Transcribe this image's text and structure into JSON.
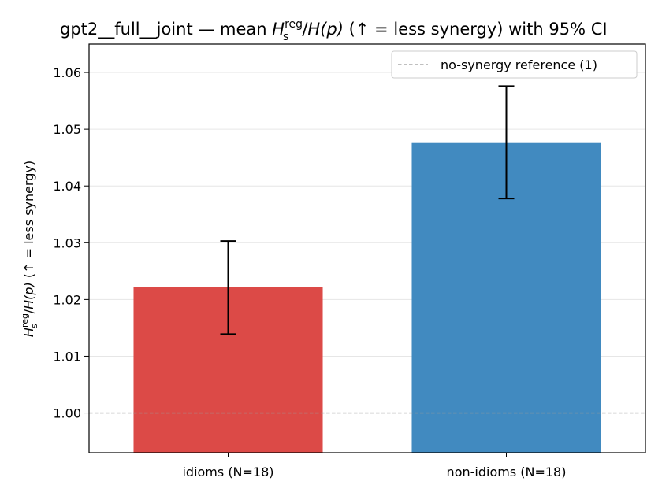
{
  "chart_data": {
    "type": "bar",
    "title": {
      "prefix": "gpt2__full__joint — mean ",
      "suffix": "  (↑ = less synergy) with 95% CI"
    },
    "ylabel": {
      "suffix": "  (↑ = less synergy)"
    },
    "math": {
      "H": "H",
      "sub": "s",
      "sup": "reg",
      "slash": "/",
      "Hp": "H(p)"
    },
    "categories": [
      "idioms (N=18)",
      "non-idioms (N=18)"
    ],
    "values": [
      1.0222,
      1.0477
    ],
    "ci": [
      [
        1.0139,
        1.0303
      ],
      [
        1.0378,
        1.0576
      ]
    ],
    "colors": [
      "#dc4a47",
      "#418ac0"
    ],
    "ylim": [
      0.993,
      1.065
    ],
    "yticks": [
      1.0,
      1.01,
      1.02,
      1.03,
      1.04,
      1.05,
      1.06
    ],
    "ytick_labels": [
      "1.00",
      "1.01",
      "1.02",
      "1.03",
      "1.04",
      "1.05",
      "1.06"
    ],
    "reference": {
      "value": 1.0,
      "label": "no-synergy reference (1)",
      "color": "#999999"
    },
    "grid": "y",
    "legend_position": "top-right"
  }
}
